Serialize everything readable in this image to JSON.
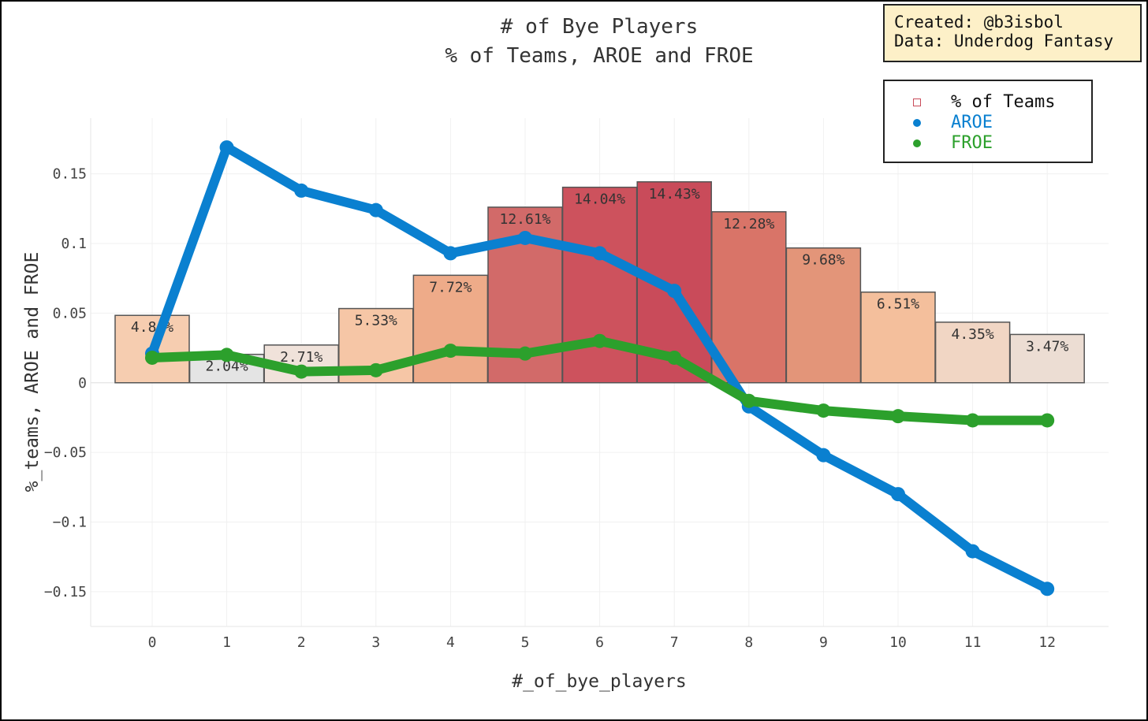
{
  "chart_data": {
    "type": "bar",
    "title": "# of Bye Players",
    "subtitle": "% of Teams, AROE and FROE",
    "xlabel": "#_of_bye_players",
    "ylabel": "%_teams, AROE and FROE",
    "ylim": [
      -0.175,
      0.19
    ],
    "yticks": [
      0.15,
      0.1,
      0.05,
      0,
      -0.05,
      -0.1,
      -0.15
    ],
    "ytick_labels": [
      "0.15",
      "0.1",
      "0.05",
      "0",
      "−0.05",
      "−0.1",
      "−0.15"
    ],
    "categories": [
      0,
      1,
      2,
      3,
      4,
      5,
      6,
      7,
      8,
      9,
      10,
      11,
      12
    ],
    "grid": true,
    "legend_position": "top-right",
    "series": [
      {
        "name": "% of Teams",
        "kind": "bar",
        "values": [
          0.0484,
          0.0204,
          0.0271,
          0.0533,
          0.0772,
          0.1261,
          0.1404,
          0.1443,
          0.1228,
          0.0968,
          0.0651,
          0.0435,
          0.0347
        ],
        "labels": [
          "4.84%",
          "2.04%",
          "2.71%",
          "5.33%",
          "7.72%",
          "12.61%",
          "14.04%",
          "14.43%",
          "12.28%",
          "9.68%",
          "6.51%",
          "4.35%",
          "3.47%"
        ],
        "colors": [
          "#f6cdb0",
          "#e4e4e4",
          "#f0e2da",
          "#f6c6a6",
          "#eeab89",
          "#d26a69",
          "#cd525d",
          "#c94b5a",
          "#d97468",
          "#e39579",
          "#f4bf9c",
          "#f1d6c4",
          "#ecddd3"
        ],
        "legend_color": "#c94b5a"
      },
      {
        "name": "AROE",
        "kind": "line",
        "color": "#0a80d0",
        "values": [
          0.021,
          0.169,
          0.138,
          0.124,
          0.093,
          0.104,
          0.093,
          0.066,
          -0.017,
          -0.052,
          -0.08,
          -0.121,
          -0.148
        ]
      },
      {
        "name": "FROE",
        "kind": "line",
        "color": "#2ca02c",
        "values": [
          0.018,
          0.02,
          0.008,
          0.009,
          0.023,
          0.021,
          0.03,
          0.018,
          -0.013,
          -0.02,
          -0.024,
          -0.027,
          -0.027
        ]
      }
    ]
  },
  "credit": {
    "line1": "Created: @b3isbol",
    "line2": "Data: Underdog Fantasy"
  }
}
